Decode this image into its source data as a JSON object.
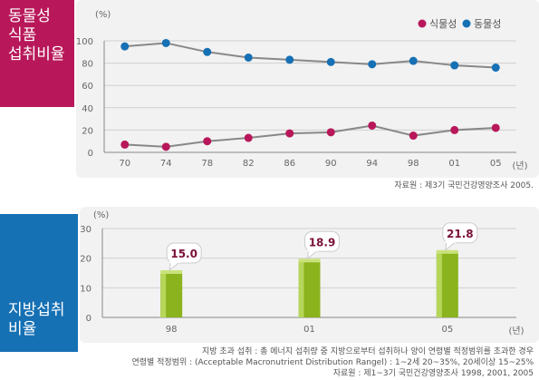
{
  "top_label": [
    "동물성",
    "식품",
    "섭취비율"
  ],
  "bottom_label": [
    "지방섭취",
    "비율"
  ],
  "chart_data": [
    {
      "type": "line",
      "ylabel": "(%)",
      "xlabel": "(년)",
      "x": [
        "70",
        "74",
        "78",
        "82",
        "86",
        "90",
        "94",
        "98",
        "01",
        "05"
      ],
      "yticks": [
        "0",
        "20",
        "40",
        "60",
        "80",
        "100"
      ],
      "ylim": [
        0,
        100
      ],
      "grid": true,
      "legend": "top-right",
      "series": [
        {
          "name": "식물성",
          "color": "#b8185a",
          "values": [
            7,
            5,
            10,
            13,
            17,
            18,
            24,
            15,
            20,
            22
          ]
        },
        {
          "name": "동물성",
          "color": "#1670b4",
          "values": [
            95,
            98,
            90,
            85,
            83,
            81,
            79,
            82,
            78,
            76
          ]
        }
      ],
      "line_color": "#888888",
      "source": "자료원 : 제3기 국민건강영양조사 2005."
    },
    {
      "type": "bar",
      "ylabel": "(%)",
      "xlabel": "(년)",
      "categories": [
        "98",
        "01",
        "05"
      ],
      "yticks": [
        "0",
        "10",
        "20",
        "30"
      ],
      "ylim": [
        0,
        30
      ],
      "values": [
        15.0,
        18.9,
        21.8
      ],
      "value_labels": [
        "15.0",
        "18.9",
        "21.8"
      ],
      "bar_color": "#8ab31e",
      "note": [
        "지방 초과 섭취 : 총 에너지 섭취량 중 지방으로부터 섭취하나 양이 연령별 적정범위를 초과한 경우",
        "연령별 적정범위 : (Acceptable Macronutrient Distribution Rangel) : 1~2세 20~35%, 20세이상 15~25%",
        "자료원 : 제1~3기 국민건강영양조사 1998, 2001, 2005"
      ]
    }
  ]
}
